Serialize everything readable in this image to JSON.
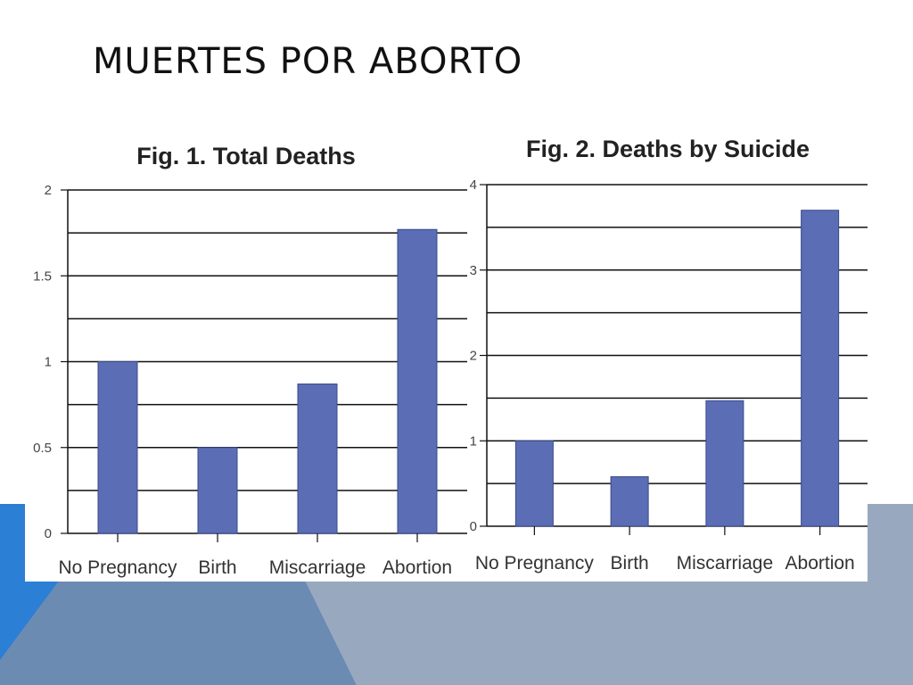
{
  "slide": {
    "title": "MUERTES POR ABORTO"
  },
  "colors": {
    "bar": "#5b6db5",
    "bar_edge": "#3a4a8a",
    "grid": "#111111",
    "deco_blue": "#2b7fd4",
    "deco_mid": "#6c8bb3",
    "deco_light": "#98a8bf"
  },
  "chart_data": [
    {
      "type": "bar",
      "title": "Fig. 1.  Total Deaths",
      "categories": [
        "No Pregnancy",
        "Birth",
        "Miscarriage",
        "Abortion"
      ],
      "values": [
        1.0,
        0.5,
        0.87,
        1.77
      ],
      "ylim": [
        0,
        2
      ],
      "yticks": [
        "0",
        "0.5",
        "1",
        "1.5",
        "2"
      ],
      "ytick_values": [
        0,
        0.5,
        1,
        1.5,
        2
      ],
      "grid_step": 0.25,
      "grid": true,
      "xlabel": "",
      "ylabel": ""
    },
    {
      "type": "bar",
      "title": "Fig. 2. Deaths by Suicide",
      "categories": [
        "No Pregnancy",
        "Birth",
        "Miscarriage",
        "Abortion"
      ],
      "values": [
        1.0,
        0.58,
        1.47,
        3.7
      ],
      "ylim": [
        0,
        4
      ],
      "yticks": [
        "0",
        "1",
        "2",
        "3",
        "4"
      ],
      "ytick_values": [
        0,
        1,
        2,
        3,
        4
      ],
      "grid_step": 0.5,
      "grid": true,
      "xlabel": "",
      "ylabel": ""
    }
  ]
}
